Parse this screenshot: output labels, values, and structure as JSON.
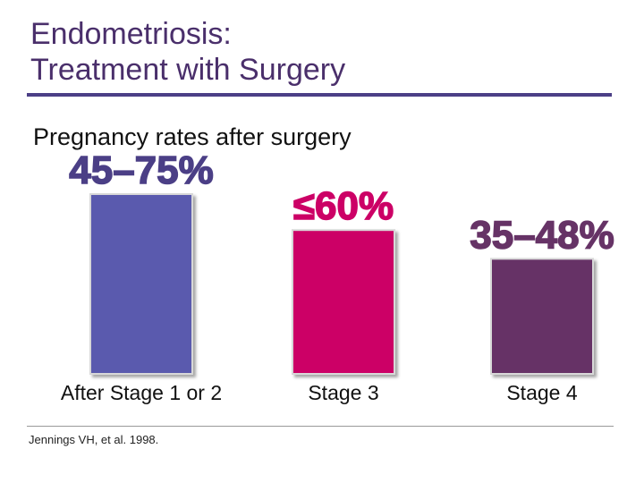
{
  "slide": {
    "title_line1": "Endometriosis:",
    "title_line2": "Treatment with Surgery",
    "source": "Jennings VH, et al. 1998."
  },
  "chart_data": {
    "type": "bar",
    "title": "Pregnancy rates after surgery",
    "categories": [
      "After Stage 1 or 2",
      "Stage 3",
      "Stage 4"
    ],
    "value_labels": [
      "45–75%",
      "≤60%",
      "35–48%"
    ],
    "values": [
      75,
      60,
      48
    ],
    "colors": [
      "#5a5aae",
      "#cc0066",
      "#663366"
    ],
    "label_colors": [
      "#4b3f86",
      "#cc0066",
      "#663366"
    ],
    "ylim": [
      0,
      100
    ],
    "grid": false,
    "legend": "none"
  }
}
